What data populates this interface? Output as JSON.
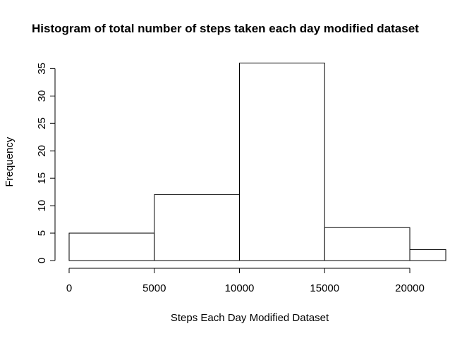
{
  "chart_data": {
    "type": "bar",
    "title": "Histogram of total number of steps taken each day modified dataset",
    "xlabel": "Steps Each Day Modified Dataset",
    "ylabel": "Frequency",
    "bins": [
      {
        "from": 0,
        "to": 5000,
        "count": 5
      },
      {
        "from": 5000,
        "to": 10000,
        "count": 12
      },
      {
        "from": 10000,
        "to": 15000,
        "count": 36
      },
      {
        "from": 15000,
        "to": 20000,
        "count": 6
      },
      {
        "from": 20000,
        "to": 25000,
        "count": 2
      }
    ],
    "xlim": [
      0,
      22000
    ],
    "ylim": [
      0,
      36
    ],
    "x_ticks": [
      0,
      5000,
      10000,
      15000,
      20000
    ],
    "y_ticks": [
      0,
      5,
      10,
      15,
      20,
      25,
      30,
      35
    ],
    "grid": false,
    "legend": "none",
    "bar_fill": "#ffffff",
    "stroke_color": "#000000"
  }
}
